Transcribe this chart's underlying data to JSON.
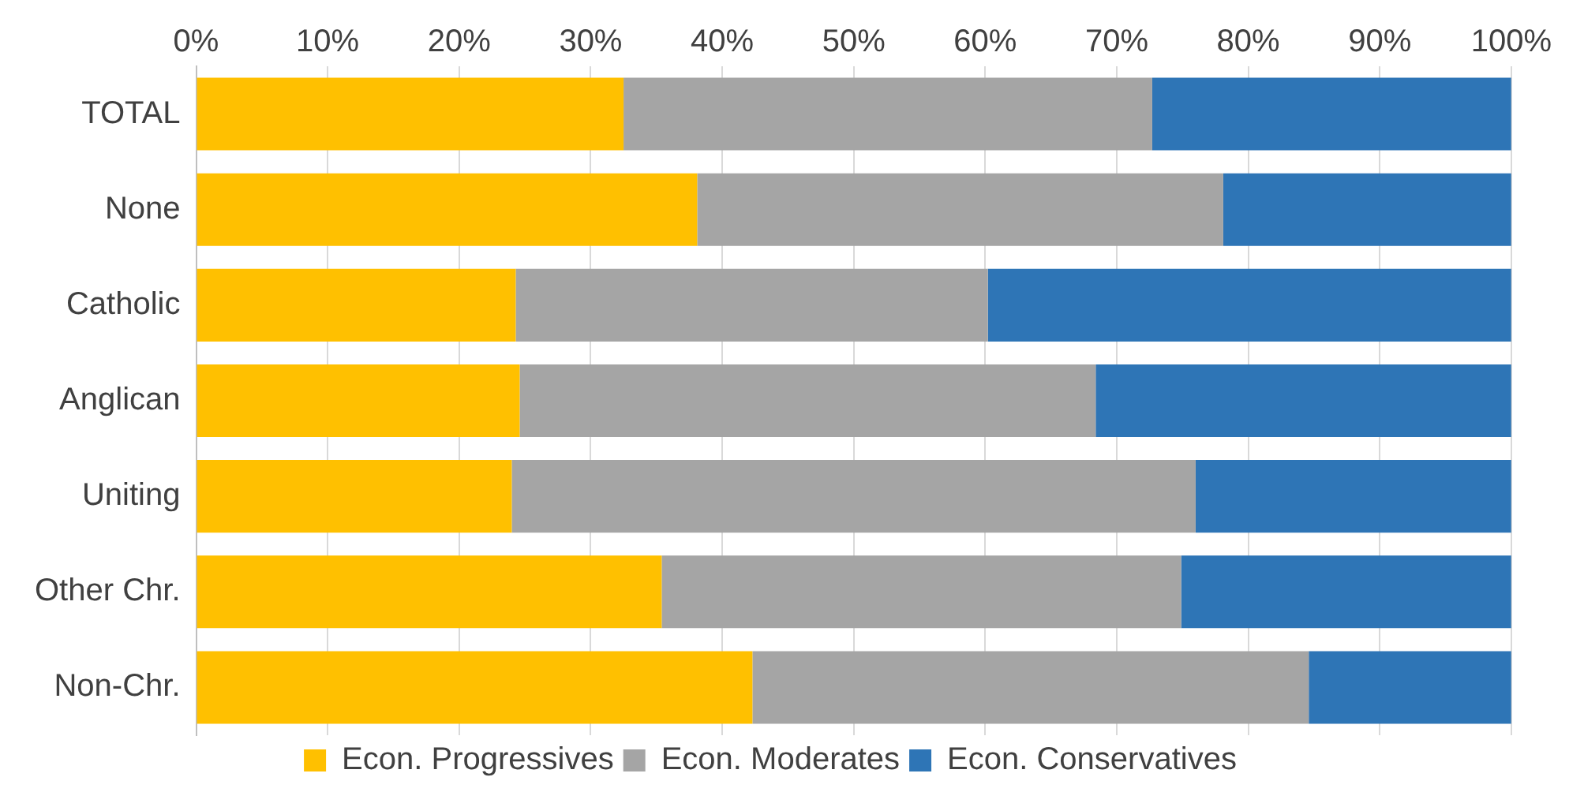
{
  "chart_data": {
    "type": "bar",
    "orientation": "horizontal",
    "stacked": true,
    "categories": [
      "TOTAL",
      "None",
      "Catholic",
      "Anglican",
      "Uniting",
      "Other Chr.",
      "Non-Chr."
    ],
    "series": [
      {
        "name": "Econ. Progressives",
        "color": "#ffc000",
        "values": [
          32.5,
          38.1,
          24.3,
          24.6,
          24.0,
          35.4,
          42.3
        ]
      },
      {
        "name": "Econ. Moderates",
        "color": "#a5a5a5",
        "values": [
          40.2,
          40.0,
          35.9,
          43.8,
          52.0,
          39.5,
          42.3
        ]
      },
      {
        "name": "Econ. Conservatives",
        "color": "#2e75b6",
        "values": [
          27.3,
          21.9,
          39.8,
          31.6,
          24.0,
          25.1,
          15.4
        ]
      }
    ],
    "xlim": [
      0,
      100
    ],
    "xticks": [
      {
        "value": 0,
        "label": "0%"
      },
      {
        "value": 10,
        "label": "10%"
      },
      {
        "value": 20,
        "label": "20%"
      },
      {
        "value": 30,
        "label": "30%"
      },
      {
        "value": 40,
        "label": "40%"
      },
      {
        "value": 50,
        "label": "50%"
      },
      {
        "value": 60,
        "label": "60%"
      },
      {
        "value": 70,
        "label": "70%"
      },
      {
        "value": 80,
        "label": "80%"
      },
      {
        "value": 90,
        "label": "90%"
      },
      {
        "value": 100,
        "label": "100%"
      }
    ],
    "grid": "x",
    "legend": "bottom"
  }
}
